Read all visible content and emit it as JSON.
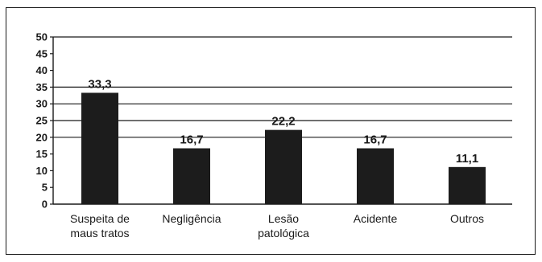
{
  "chart_data": {
    "type": "bar",
    "categories": [
      [
        "Suspeita de",
        "maus tratos"
      ],
      [
        "Negligência"
      ],
      [
        "Lesão",
        "patológica"
      ],
      [
        "Acidente"
      ],
      [
        "Outros"
      ]
    ],
    "values": [
      33.3,
      16.7,
      22.2,
      16.7,
      11.1
    ],
    "data_labels": [
      "33,3",
      "16,7",
      "22,2",
      "16,7",
      "11,1"
    ],
    "y_ticks": [
      "0",
      "5",
      "10",
      "15",
      "20",
      "25",
      "30",
      "35",
      "40",
      "45",
      "50"
    ],
    "ylim": [
      0,
      50
    ],
    "gridlines_at": [
      20,
      25,
      30,
      35,
      50
    ],
    "grid": true,
    "legend": false,
    "title": "",
    "xlabel": "",
    "ylabel": "",
    "colors": {
      "bar": "#1c1c1c",
      "axis": "#1a1a1a",
      "grid": "#1a1a1a"
    }
  }
}
